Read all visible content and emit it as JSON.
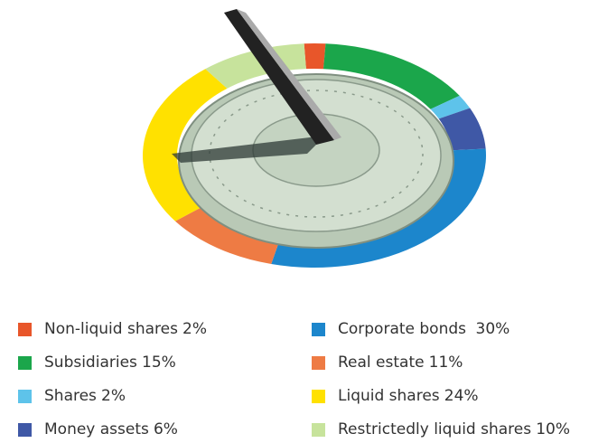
{
  "chart_data": {
    "type": "pie",
    "categories": [
      "Non-liquid shares",
      "Subsidiaries",
      "Shares",
      "Money assets",
      "Corporate bonds",
      "Real estate",
      "Liquid shares",
      "Restrictedly liquid shares"
    ],
    "values": [
      2,
      15,
      2,
      6,
      30,
      11,
      24,
      10
    ],
    "value_labels": [
      "2%",
      "15%",
      "2%",
      "6%",
      " 30%",
      "11%",
      "24%",
      "10%"
    ],
    "colors": [
      "#e8562a",
      "#1ba64b",
      "#5ec3ea",
      "#3f58a6",
      "#1c86cc",
      "#ee7b44",
      "#ffe100",
      "#c7e39c"
    ]
  }
}
